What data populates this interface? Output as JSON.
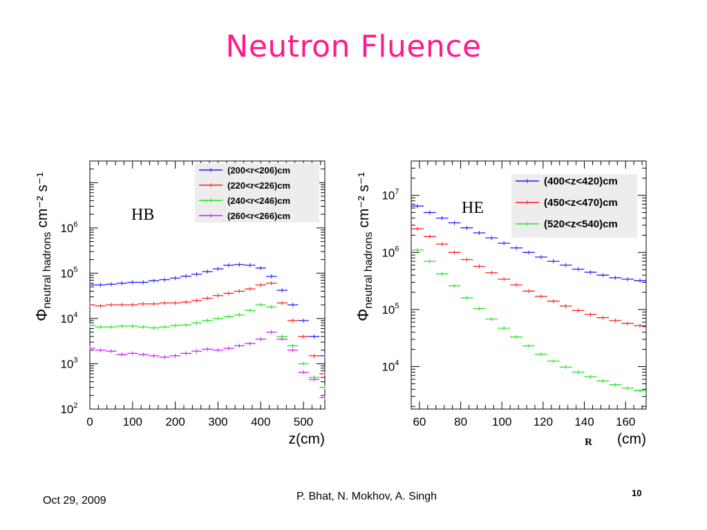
{
  "slide": {
    "title": "Neutron Fluence",
    "footer_date": "Oct 29, 2009",
    "footer_authors": "P. Bhat,  N. Mokhov, A. Singh",
    "page_number": "10",
    "title_color": "#ff1a8c"
  },
  "chart_data": [
    {
      "type": "scatter",
      "label": "HB",
      "ylabel_main": "Φ",
      "ylabel_sub": "neutral hadrons",
      "ylabel_units": "cm⁻² s⁻¹",
      "xlabel": "z(cm)",
      "xlim": [
        0,
        550
      ],
      "ylim": [
        100,
        30000000
      ],
      "yscale": "log",
      "x_ticks": [
        0,
        100,
        200,
        300,
        400,
        500
      ],
      "y_tick_exponents": [
        2,
        3,
        4,
        5,
        6
      ],
      "legend_position": "top-right",
      "x": [
        0,
        25,
        50,
        75,
        100,
        125,
        150,
        175,
        200,
        225,
        250,
        275,
        300,
        325,
        350,
        375,
        400,
        425,
        450,
        475,
        500,
        525,
        550
      ],
      "series": [
        {
          "name": "(200<r<206)cm",
          "color": "#1a1aff",
          "values": [
            55000,
            55000,
            57000,
            60000,
            63000,
            63000,
            68000,
            72000,
            78000,
            86000,
            95000,
            108000,
            125000,
            150000,
            155000,
            150000,
            130000,
            85000,
            42000,
            20000,
            9000,
            4000,
            1500
          ]
        },
        {
          "name": "(220<r<226)cm",
          "color": "#ff1a1a",
          "values": [
            20000,
            19000,
            20000,
            20000,
            20000,
            21000,
            21000,
            22000,
            22000,
            23000,
            25000,
            28000,
            32000,
            36000,
            40000,
            45000,
            55000,
            60000,
            22000,
            9000,
            4000,
            1500,
            600
          ]
        },
        {
          "name": "(240<r<246)cm",
          "color": "#1ae61a",
          "values": [
            7000,
            6500,
            6500,
            6800,
            6800,
            6500,
            6200,
            6500,
            7000,
            7200,
            8000,
            9000,
            10000,
            11000,
            12000,
            15000,
            20000,
            18000,
            4000,
            2500,
            1000,
            500,
            300
          ]
        },
        {
          "name": "(260<r<266)cm",
          "color": "#cc1aff",
          "values": [
            2200,
            2000,
            1900,
            1600,
            1700,
            1600,
            1500,
            1400,
            1500,
            1700,
            1900,
            2100,
            2000,
            2200,
            2500,
            2800,
            3500,
            5000,
            3500,
            2000,
            650,
            450,
            180
          ]
        }
      ]
    },
    {
      "type": "scatter",
      "label": "HE",
      "ylabel_main": "Φ",
      "ylabel_sub": "neutral hadrons",
      "ylabel_units": "cm⁻² s⁻¹",
      "xlabel": "(cm)",
      "xlabel_prefix": "R",
      "xlim": [
        56,
        170
      ],
      "ylim": [
        1800,
        40000000
      ],
      "yscale": "log",
      "x_ticks": [
        60,
        80,
        100,
        120,
        140,
        160
      ],
      "y_tick_exponents": [
        4,
        5,
        6,
        7
      ],
      "legend_position": "top-right",
      "x": [
        59,
        65,
        71,
        77,
        83,
        89,
        95,
        101,
        107,
        113,
        119,
        125,
        131,
        137,
        143,
        149,
        155,
        161,
        167
      ],
      "series": [
        {
          "name": "(400<z<420)cm",
          "color": "#1a1aff",
          "values": [
            6500000,
            5000000,
            4000000,
            3300000,
            2700000,
            2200000,
            1800000,
            1450000,
            1200000,
            1000000,
            830000,
            700000,
            600000,
            510000,
            450000,
            400000,
            360000,
            340000,
            320000
          ]
        },
        {
          "name": "(450<z<470)cm",
          "color": "#ff1a1a",
          "values": [
            2600000,
            1900000,
            1400000,
            1000000,
            750000,
            570000,
            440000,
            340000,
            270000,
            210000,
            170000,
            140000,
            115000,
            96000,
            82000,
            72000,
            64000,
            57000,
            52000
          ]
        },
        {
          "name": "(520<z<540)cm",
          "color": "#1ae61a",
          "values": [
            1100000,
            700000,
            420000,
            260000,
            160000,
            104000,
            68000,
            47000,
            33000,
            23000,
            16500,
            12500,
            9800,
            8000,
            6600,
            5600,
            4800,
            4200,
            3800
          ]
        }
      ]
    }
  ]
}
